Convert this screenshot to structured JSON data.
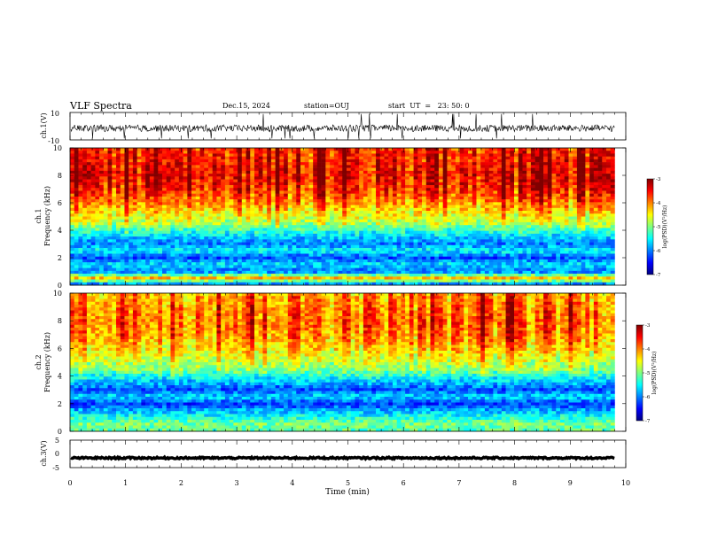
{
  "header": {
    "title": "VLF Spectra",
    "date": "Dec.15, 2024",
    "station": "station=OUJ",
    "start": "start  UT  =   23: 50: 0"
  },
  "colors": {
    "background": "#ffffff",
    "axis": "#000000",
    "colormap": [
      "#00007f",
      "#0000ff",
      "#0080ff",
      "#00ffff",
      "#7fff7f",
      "#ffff00",
      "#ff8000",
      "#ff0000",
      "#7f0000"
    ]
  },
  "chart_data": [
    {
      "type": "line",
      "panel": "waveform-ch1",
      "ylabel": "ch.1(V)",
      "ylim": [
        -10,
        10
      ],
      "ytick_labels": [
        "10",
        "-10"
      ],
      "x_range": [
        0,
        10
      ],
      "signal_end_min": 9.8,
      "baseline_V": -1.5,
      "noise_amplitude_V": 2.5
    },
    {
      "type": "heatmap",
      "panel": "spectrogram-ch1",
      "ylabel": "ch.1\nFrequency (kHz)",
      "ylim": [
        0,
        10
      ],
      "ytick_labels": [
        "0",
        "2",
        "4",
        "6",
        "8",
        "10"
      ],
      "x_range": [
        0,
        10
      ],
      "signal_end_min": 9.8,
      "frequency_profile_kHz": [
        0,
        0.5,
        1,
        1.5,
        2,
        2.5,
        3,
        3.5,
        4,
        4.5,
        5,
        6,
        7,
        8,
        9,
        10
      ],
      "log_psd_profile": [
        -6.3,
        -4.2,
        -6.1,
        -5.6,
        -6.2,
        -5.5,
        -6.0,
        -5.7,
        -5.3,
        -4.8,
        -4.6,
        -4.1,
        -3.7,
        -3.5,
        -3.6,
        -3.7
      ],
      "colorbar": {
        "label": "log(PSD)(V²/Hz)",
        "range": [
          -7,
          -3
        ],
        "tick_labels": [
          "-3",
          "-4",
          "-5",
          "-6",
          "-7"
        ]
      }
    },
    {
      "type": "heatmap",
      "panel": "spectrogram-ch2",
      "ylabel": "ch.2\nFrequency (kHz)",
      "ylim": [
        0,
        10
      ],
      "ytick_labels": [
        "0",
        "2",
        "4",
        "6",
        "8",
        "10"
      ],
      "x_range": [
        0,
        10
      ],
      "signal_end_min": 9.8,
      "frequency_profile_kHz": [
        0,
        0.5,
        1,
        1.5,
        2,
        2.5,
        3,
        3.5,
        4,
        4.5,
        5,
        6,
        7,
        8,
        9,
        10
      ],
      "log_psd_profile": [
        -5.2,
        -5.0,
        -5.4,
        -5.8,
        -6.3,
        -5.6,
        -6.2,
        -5.8,
        -5.4,
        -4.9,
        -4.7,
        -4.3,
        -4.0,
        -3.9,
        -4.0,
        -4.1
      ],
      "colorbar": {
        "label": "log(PSD)(V²/Hz)",
        "range": [
          -7,
          -3
        ],
        "tick_labels": [
          "-3",
          "-4",
          "-5",
          "-6",
          "-7"
        ]
      }
    },
    {
      "type": "line",
      "panel": "waveform-ch3",
      "ylabel": "ch.3(V)",
      "ylim": [
        -5,
        5
      ],
      "ytick_labels": [
        "5",
        "0",
        "-5"
      ],
      "x_range": [
        0,
        10
      ],
      "signal_end_min": 9.8,
      "baseline_V": -1.5,
      "noise_amplitude_V": 0.3
    }
  ],
  "xaxis": {
    "label": "Time (min)",
    "range": [
      0,
      10
    ],
    "tick_labels": [
      "0",
      "1",
      "2",
      "3",
      "4",
      "5",
      "6",
      "7",
      "8",
      "9",
      "10"
    ]
  }
}
